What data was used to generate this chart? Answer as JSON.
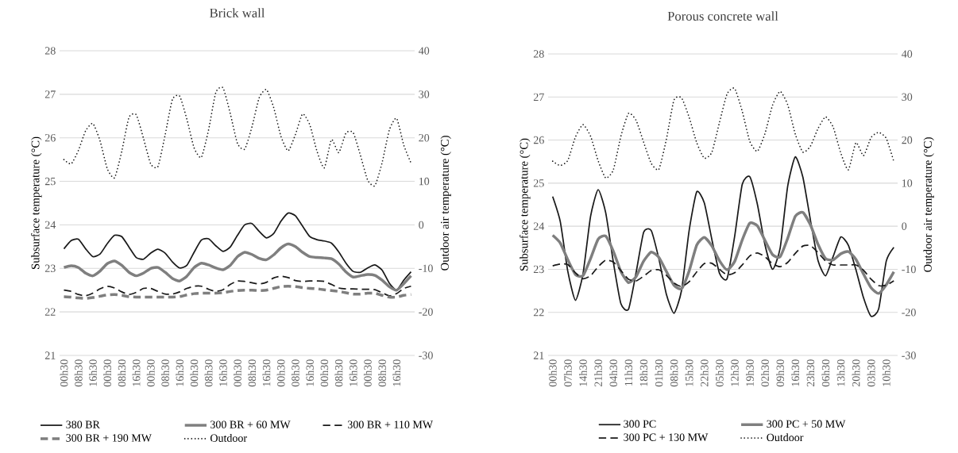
{
  "chart_data": [
    {
      "type": "line",
      "title": "Brick wall",
      "ylabel": "Subsurface temperature (°C)",
      "y2label": "Outdoor air temperature (°C)",
      "categories": [
        "00h30",
        null,
        "08h30",
        null,
        "16h30",
        null,
        "00h30",
        null,
        "08h30",
        null,
        "16h30",
        null,
        "00h30",
        null,
        "08h30",
        null,
        "16h30",
        null,
        "00h30",
        null,
        "08h30",
        null,
        "16h30",
        null,
        "00h30",
        null,
        "08h30",
        null,
        "16h30",
        null,
        "00h30",
        null,
        "08h30",
        null,
        "16h30",
        null,
        "00h30",
        null,
        "08h30",
        null,
        "16h30",
        null,
        "00h30",
        null,
        "08h30",
        null,
        "16h30",
        null,
        null
      ],
      "ylim": [
        21,
        28
      ],
      "yticks": [
        21,
        22,
        23,
        24,
        25,
        26,
        27,
        28
      ],
      "y2lim": [
        -30,
        40
      ],
      "y2ticks": [
        -30,
        -20,
        -10,
        0,
        10,
        20,
        30,
        40
      ],
      "grid": "y",
      "legend": "bottom",
      "series": [
        {
          "name": "380 BR",
          "color": "#1a1a1a",
          "line_style": "solid",
          "values": [
            23.45,
            23.64,
            23.67,
            23.45,
            23.27,
            23.33,
            23.57,
            23.76,
            23.73,
            23.49,
            23.25,
            23.21,
            23.35,
            23.44,
            23.35,
            23.15,
            23.01,
            23.07,
            23.37,
            23.65,
            23.68,
            23.52,
            23.39,
            23.49,
            23.76,
            24.0,
            24.03,
            23.85,
            23.7,
            23.8,
            24.08,
            24.27,
            24.21,
            23.97,
            23.73,
            23.66,
            23.63,
            23.58,
            23.38,
            23.12,
            22.93,
            22.91,
            23.01,
            23.08,
            22.96,
            22.66,
            22.5,
            22.73,
            22.92
          ]
        },
        {
          "name": "300 BR + 60 MW",
          "color": "#7f7f7f",
          "line_style": "solid",
          "values": [
            23.02,
            23.06,
            23.02,
            22.89,
            22.83,
            22.94,
            23.11,
            23.17,
            23.07,
            22.91,
            22.83,
            22.89,
            23.0,
            23.02,
            22.91,
            22.77,
            22.71,
            22.82,
            23.02,
            23.12,
            23.08,
            23.01,
            22.97,
            23.07,
            23.27,
            23.37,
            23.32,
            23.23,
            23.2,
            23.31,
            23.47,
            23.56,
            23.5,
            23.37,
            23.27,
            23.25,
            23.24,
            23.22,
            23.1,
            22.92,
            22.8,
            22.83,
            22.86,
            22.84,
            22.73,
            22.58,
            22.5,
            22.65,
            22.83
          ]
        },
        {
          "name": "300 BR + 110 MW",
          "color": "#1a1a1a",
          "line_style": "dashed",
          "values": [
            22.5,
            22.47,
            22.4,
            22.37,
            22.43,
            22.53,
            22.59,
            22.55,
            22.46,
            22.4,
            22.45,
            22.54,
            22.54,
            22.47,
            22.41,
            22.41,
            22.46,
            22.54,
            22.59,
            22.59,
            22.52,
            22.47,
            22.51,
            22.63,
            22.71,
            22.7,
            22.67,
            22.64,
            22.68,
            22.78,
            22.82,
            22.79,
            22.72,
            22.7,
            22.71,
            22.71,
            22.7,
            22.63,
            22.55,
            22.53,
            22.53,
            22.52,
            22.52,
            22.51,
            22.44,
            22.37,
            22.42,
            22.54,
            22.59
          ]
        },
        {
          "name": "300 BR + 190 MW",
          "color": "#7f7f7f",
          "line_style": "dashed",
          "values": [
            22.35,
            22.34,
            22.32,
            22.31,
            22.33,
            22.36,
            22.39,
            22.4,
            22.38,
            22.35,
            22.34,
            22.34,
            22.34,
            22.34,
            22.34,
            22.34,
            22.35,
            22.39,
            22.42,
            22.43,
            22.43,
            22.43,
            22.44,
            22.47,
            22.49,
            22.5,
            22.5,
            22.49,
            22.5,
            22.54,
            22.58,
            22.59,
            22.58,
            22.56,
            22.54,
            22.53,
            22.51,
            22.49,
            22.47,
            22.44,
            22.41,
            22.41,
            22.43,
            22.43,
            22.38,
            22.34,
            22.34,
            22.38,
            22.4
          ]
        },
        {
          "name": "Outdoor",
          "color": "#1a1a1a",
          "line_style": "dotted",
          "axis": "y2",
          "values": [
            15,
            14.0,
            17.1,
            21.6,
            23.3,
            19.3,
            12.9,
            10.8,
            16.9,
            24.7,
            25.3,
            19.9,
            14.0,
            13.4,
            20.7,
            28.8,
            29.6,
            24.3,
            17.7,
            15.5,
            21.8,
            30.4,
            31.5,
            25.6,
            18.7,
            17.4,
            22.5,
            29.2,
            31.1,
            27.0,
            20.4,
            17.0,
            20.7,
            25.5,
            23.0,
            16.9,
            13.1,
            19.6,
            16.6,
            21.1,
            21.2,
            16.0,
            10.3,
            9.0,
            14.3,
            21.8,
            24.5,
            18.3,
            14.2
          ]
        }
      ]
    },
    {
      "type": "line",
      "title": "Porous concrete wall",
      "ylabel": "Subsurface temperature (°C)",
      "y2label": "Outdoor air temperature (°C)",
      "categories": [
        "00h30",
        null,
        "07h30",
        null,
        "14h30",
        null,
        "21h30",
        null,
        "04h30",
        null,
        "11h30",
        null,
        "18h30",
        null,
        "01h30",
        null,
        "08h30",
        null,
        "15h30",
        null,
        "22h30",
        null,
        "05h30",
        null,
        "12h30",
        null,
        "19h30",
        null,
        "02h30",
        null,
        "09h30",
        null,
        "16h30",
        null,
        "23h30",
        null,
        "06h30",
        null,
        "13h30",
        null,
        "20h30",
        null,
        "03h30",
        null,
        "10h30",
        null
      ],
      "ylim": [
        21,
        28
      ],
      "yticks": [
        21,
        22,
        23,
        24,
        25,
        26,
        27,
        28
      ],
      "y2lim": [
        -30,
        40
      ],
      "y2ticks": [
        -30,
        -20,
        -10,
        0,
        10,
        20,
        30,
        40
      ],
      "grid": "y",
      "legend": "bottom",
      "series": [
        {
          "name": "300 PC",
          "color": "#1a1a1a",
          "line_style": "solid",
          "values": [
            24.69,
            24.11,
            22.95,
            22.28,
            22.89,
            24.23,
            24.85,
            24.31,
            23.17,
            22.2,
            22.07,
            22.92,
            23.86,
            23.9,
            23.25,
            22.42,
            21.98,
            22.51,
            23.9,
            24.8,
            24.54,
            23.69,
            22.91,
            22.78,
            23.76,
            24.97,
            25.15,
            24.51,
            23.57,
            23.0,
            23.49,
            24.93,
            25.61,
            25.14,
            24.14,
            23.2,
            22.85,
            23.3,
            23.75,
            23.56,
            22.99,
            22.34,
            21.91,
            22.08,
            23.19,
            23.51
          ]
        },
        {
          "name": "300 PC + 50 MW",
          "color": "#7f7f7f",
          "line_style": "solid",
          "values": [
            23.79,
            23.61,
            23.22,
            22.88,
            22.85,
            23.25,
            23.7,
            23.77,
            23.42,
            22.95,
            22.69,
            22.83,
            23.19,
            23.4,
            23.28,
            22.95,
            22.63,
            22.55,
            22.96,
            23.56,
            23.74,
            23.54,
            23.2,
            22.99,
            23.18,
            23.68,
            24.07,
            24.01,
            23.67,
            23.34,
            23.29,
            23.72,
            24.23,
            24.32,
            24.03,
            23.58,
            23.25,
            23.22,
            23.36,
            23.41,
            23.23,
            22.89,
            22.57,
            22.44,
            22.64,
            22.94
          ]
        },
        {
          "name": "300 PC + 130 MW",
          "color": "#1a1a1a",
          "line_style": "dashed",
          "values": [
            23.08,
            23.12,
            23.11,
            22.92,
            22.78,
            22.85,
            23.06,
            23.21,
            23.17,
            22.97,
            22.77,
            22.73,
            22.84,
            22.97,
            22.99,
            22.86,
            22.68,
            22.6,
            22.71,
            22.94,
            23.13,
            23.14,
            23.0,
            22.87,
            22.92,
            23.1,
            23.31,
            23.38,
            23.29,
            23.13,
            23.06,
            23.16,
            23.37,
            23.54,
            23.55,
            23.39,
            23.19,
            23.1,
            23.1,
            23.1,
            23.1,
            22.98,
            22.77,
            22.62,
            22.63,
            22.73
          ]
        },
        {
          "name": "Outdoor",
          "color": "#1a1a1a",
          "line_style": "dotted",
          "axis": "y2",
          "values": [
            15.1,
            14.1,
            15.3,
            20.7,
            23.6,
            20.9,
            15.2,
            11.2,
            13.1,
            20.9,
            26.2,
            24.6,
            19.5,
            14.6,
            13.2,
            20.2,
            29.3,
            29.8,
            25.3,
            19.4,
            15.8,
            17.2,
            24.1,
            30.7,
            32.0,
            26.7,
            19.7,
            17.4,
            21.5,
            28.1,
            31.3,
            28.2,
            21.4,
            17.2,
            18.6,
            22.7,
            25.4,
            23.0,
            17.0,
            13.1,
            19.4,
            16.4,
            20.6,
            21.8,
            20.4,
            15.0
          ]
        }
      ]
    }
  ]
}
